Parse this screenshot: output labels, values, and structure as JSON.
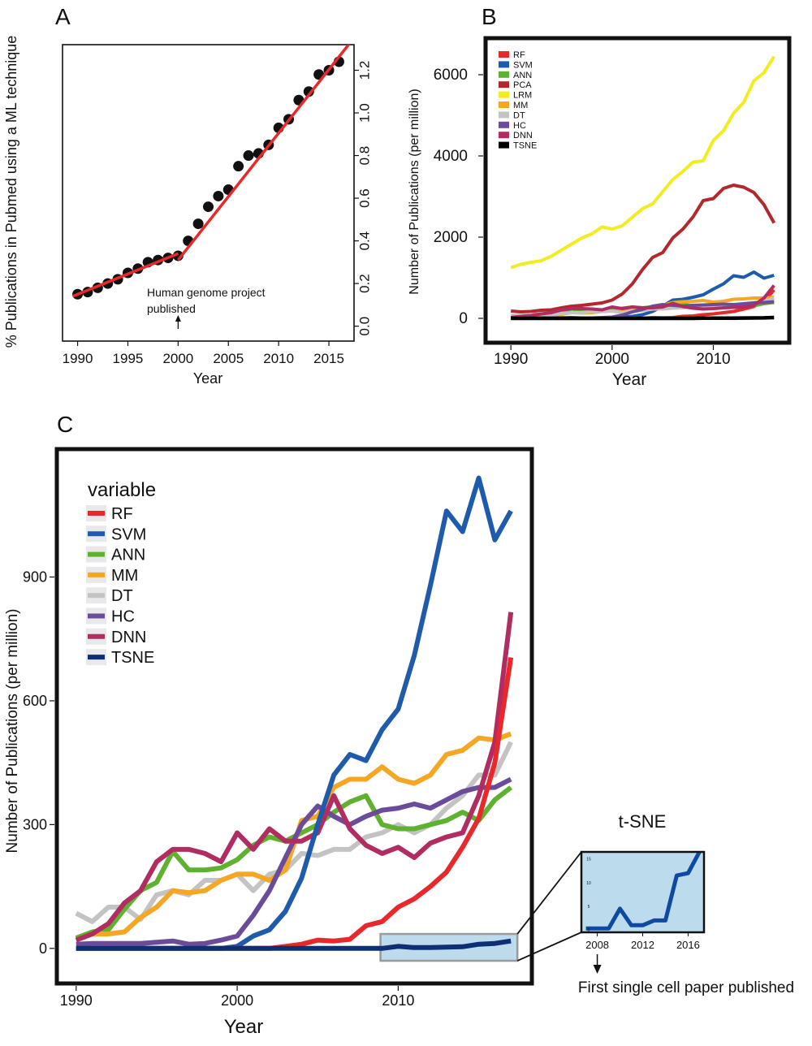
{
  "panels": {
    "A": "A",
    "B": "B",
    "C": "C"
  },
  "chart_data": [
    {
      "id": "A",
      "type": "scatter",
      "title": "",
      "xlabel": "Year",
      "ylabel": "% Publications in Pubmed using a ML technique",
      "xlim": [
        1988.5,
        2017.5
      ],
      "ylim": [
        -0.07,
        1.32
      ],
      "xticks": [
        1990,
        1995,
        2000,
        2005,
        2010,
        2015
      ],
      "yticks": [
        "0.0",
        "0.2",
        "0.4",
        "0.6",
        "0.8",
        "1.0",
        "1.2"
      ],
      "points": {
        "x": [
          1990,
          1991,
          1992,
          1993,
          1994,
          1995,
          1996,
          1997,
          1998,
          1999,
          2000,
          2001,
          2002,
          2003,
          2004,
          2005,
          2006,
          2007,
          2008,
          2009,
          2010,
          2011,
          2012,
          2013,
          2014,
          2015,
          2016
        ],
        "y": [
          0.15,
          0.16,
          0.18,
          0.2,
          0.22,
          0.25,
          0.27,
          0.3,
          0.31,
          0.32,
          0.33,
          0.4,
          0.48,
          0.56,
          0.61,
          0.64,
          0.75,
          0.8,
          0.81,
          0.85,
          0.93,
          0.97,
          1.06,
          1.1,
          1.18,
          1.2,
          1.24
        ]
      },
      "fit": [
        {
          "x": [
            1989.5,
            2000
          ],
          "y": [
            0.14,
            0.34
          ]
        },
        {
          "x": [
            2000,
            2017.3
          ],
          "y": [
            0.31,
            1.34
          ]
        }
      ],
      "annotation": {
        "line1": "Human genome project",
        "line2": "published",
        "x": 2000
      }
    },
    {
      "id": "B",
      "type": "line",
      "xlabel": "Year",
      "ylabel": "Number of Publications (per million)",
      "xlim": [
        1987.5,
        2017.5
      ],
      "ylim": [
        -600,
        6900
      ],
      "xticks": [
        1990,
        2000,
        2010
      ],
      "yticks": [
        0,
        2000,
        4000,
        6000
      ],
      "x": [
        1990,
        1991,
        1992,
        1993,
        1994,
        1995,
        1996,
        1997,
        1998,
        1999,
        2000,
        2001,
        2002,
        2003,
        2004,
        2005,
        2006,
        2007,
        2008,
        2009,
        2010,
        2011,
        2012,
        2013,
        2014,
        2015,
        2016
      ],
      "series": [
        {
          "name": "RF",
          "color": "#e8282b",
          "values": [
            0,
            0,
            0,
            0,
            0,
            0,
            0,
            0,
            0,
            0,
            0,
            0,
            0,
            5,
            20,
            15,
            20,
            50,
            60,
            90,
            110,
            140,
            170,
            230,
            290,
            420,
            700
          ]
        },
        {
          "name": "SVM",
          "color": "#1f5bab",
          "values": [
            0,
            0,
            0,
            0,
            0,
            0,
            0,
            0,
            0,
            0,
            5,
            30,
            50,
            90,
            170,
            300,
            450,
            470,
            520,
            580,
            720,
            850,
            1050,
            1010,
            1140,
            990,
            1060
          ]
        },
        {
          "name": "ANN",
          "color": "#5fb130",
          "values": [
            30,
            40,
            60,
            90,
            120,
            150,
            230,
            190,
            190,
            200,
            220,
            250,
            280,
            260,
            290,
            300,
            330,
            350,
            310,
            290,
            290,
            300,
            310,
            320,
            310,
            360,
            390
          ]
        },
        {
          "name": "PCA",
          "color": "#b3282c",
          "values": [
            180,
            160,
            170,
            200,
            210,
            260,
            300,
            320,
            350,
            380,
            450,
            600,
            850,
            1200,
            1500,
            1620,
            1980,
            2200,
            2500,
            2900,
            2950,
            3200,
            3280,
            3230,
            3100,
            2800,
            2350
          ]
        },
        {
          "name": "LRM",
          "color": "#f2ec23",
          "values": [
            1250,
            1330,
            1380,
            1420,
            1530,
            1680,
            1830,
            1980,
            2080,
            2250,
            2200,
            2280,
            2490,
            2700,
            2820,
            3120,
            3420,
            3620,
            3850,
            3880,
            4380,
            4620,
            5050,
            5320,
            5850,
            6050,
            6450
          ]
        },
        {
          "name": "MM",
          "color": "#f5a623",
          "values": [
            20,
            30,
            40,
            60,
            70,
            100,
            140,
            130,
            140,
            170,
            180,
            170,
            190,
            200,
            300,
            320,
            390,
            410,
            420,
            440,
            400,
            420,
            470,
            480,
            500,
            500,
            520
          ]
        },
        {
          "name": "DT",
          "color": "#c3c3c3",
          "values": [
            80,
            70,
            100,
            100,
            80,
            120,
            140,
            140,
            170,
            170,
            180,
            140,
            180,
            190,
            230,
            230,
            250,
            260,
            280,
            290,
            300,
            280,
            310,
            360,
            390,
            420,
            500
          ]
        },
        {
          "name": "HC",
          "color": "#6b4c9a",
          "values": [
            10,
            10,
            10,
            10,
            10,
            15,
            20,
            10,
            10,
            20,
            30,
            80,
            160,
            220,
            300,
            340,
            320,
            300,
            320,
            330,
            340,
            350,
            340,
            360,
            380,
            390,
            410
          ]
        },
        {
          "name": "DNN",
          "color": "#b12c61",
          "values": [
            20,
            50,
            70,
            110,
            140,
            210,
            240,
            240,
            230,
            210,
            280,
            240,
            280,
            260,
            260,
            280,
            370,
            290,
            250,
            230,
            240,
            260,
            270,
            280,
            320,
            500,
            810
          ]
        },
        {
          "name": "TSNE",
          "color": "#000000",
          "values": [
            0,
            0,
            0,
            0,
            0,
            0,
            0,
            0,
            0,
            0,
            0,
            0,
            0,
            0,
            0,
            0,
            0,
            0,
            0,
            5,
            5,
            5,
            5,
            8,
            10,
            12,
            20
          ]
        }
      ]
    },
    {
      "id": "C",
      "type": "line",
      "xlabel": "Year",
      "ylabel": "Number of Publications (per million)",
      "xlim": [
        1988.8,
        2018.3
      ],
      "ylim": [
        -85,
        1210
      ],
      "xticks": [
        1990,
        2000,
        2010
      ],
      "yticks": [
        0,
        300,
        600,
        900
      ],
      "legend_title": "variable",
      "x": [
        1990,
        1991,
        1992,
        1993,
        1994,
        1995,
        1996,
        1997,
        1998,
        1999,
        2000,
        2001,
        2002,
        2003,
        2004,
        2005,
        2006,
        2007,
        2008,
        2009,
        2010,
        2011,
        2012,
        2013,
        2014,
        2015,
        2016,
        2017
      ],
      "series": [
        {
          "name": "RF",
          "color": "#e8282b",
          "values": [
            0,
            0,
            0,
            0,
            0,
            0,
            0,
            0,
            0,
            0,
            0,
            0,
            0,
            5,
            10,
            20,
            18,
            22,
            55,
            65,
            100,
            120,
            150,
            185,
            245,
            315,
            450,
            705
          ]
        },
        {
          "name": "SVM",
          "color": "#1f5bab",
          "values": [
            0,
            0,
            0,
            0,
            0,
            0,
            0,
            0,
            0,
            0,
            5,
            30,
            45,
            90,
            170,
            300,
            420,
            470,
            455,
            530,
            580,
            710,
            880,
            1060,
            1010,
            1140,
            990,
            1060
          ]
        },
        {
          "name": "ANN",
          "color": "#5fb130",
          "values": [
            25,
            40,
            45,
            95,
            140,
            160,
            235,
            190,
            190,
            195,
            215,
            250,
            270,
            260,
            280,
            300,
            330,
            355,
            370,
            300,
            290,
            290,
            300,
            310,
            330,
            310,
            360,
            390
          ]
        },
        {
          "name": "MM",
          "color": "#f5a623",
          "values": [
            20,
            35,
            35,
            40,
            75,
            100,
            140,
            135,
            140,
            165,
            180,
            180,
            165,
            190,
            310,
            320,
            390,
            410,
            410,
            440,
            410,
            400,
            420,
            470,
            480,
            510,
            505,
            520
          ]
        },
        {
          "name": "DT",
          "color": "#c3c3c3",
          "values": [
            85,
            65,
            100,
            100,
            70,
            130,
            140,
            130,
            165,
            165,
            180,
            140,
            180,
            190,
            230,
            225,
            240,
            240,
            270,
            280,
            300,
            280,
            300,
            340,
            370,
            420,
            420,
            500
          ]
        },
        {
          "name": "HC",
          "color": "#6b4c9a",
          "values": [
            10,
            12,
            12,
            12,
            12,
            15,
            18,
            10,
            12,
            20,
            30,
            80,
            140,
            220,
            300,
            345,
            320,
            300,
            320,
            335,
            340,
            350,
            340,
            360,
            380,
            390,
            390,
            410
          ]
        },
        {
          "name": "DNN",
          "color": "#b12c61",
          "values": [
            20,
            35,
            60,
            110,
            140,
            210,
            240,
            240,
            230,
            210,
            280,
            240,
            290,
            260,
            260,
            280,
            370,
            290,
            250,
            230,
            245,
            220,
            255,
            270,
            280,
            370,
            500,
            815
          ]
        },
        {
          "name": "TSNE",
          "color": "#0f2f73",
          "values": [
            0,
            0,
            0,
            0,
            0,
            0,
            0,
            0,
            0,
            0,
            0,
            0,
            0,
            0,
            0,
            0,
            0,
            0,
            0,
            0,
            5,
            2,
            2,
            3,
            4,
            10,
            12,
            18
          ]
        }
      ],
      "highlight": {
        "x": [
          2008.9,
          2017.4
        ],
        "y": [
          -30,
          35
        ]
      }
    },
    {
      "id": "C-inset",
      "type": "line",
      "title": "t-SNE",
      "xticks": [
        2008,
        2012,
        2016
      ],
      "ytick_labels": [
        "0",
        "5",
        "10",
        "15"
      ],
      "xlim": [
        2006.6,
        2017.4
      ],
      "ylim": [
        -0.5,
        16.5
      ],
      "x": [
        2007,
        2008,
        2009,
        2010,
        2011,
        2012,
        2013,
        2014,
        2015,
        2016,
        2017
      ],
      "values": [
        0.3,
        0.3,
        0.3,
        4.5,
        1,
        1,
        2,
        2,
        11.5,
        12,
        16.5
      ],
      "annotation": "First single cell paper published"
    }
  ]
}
